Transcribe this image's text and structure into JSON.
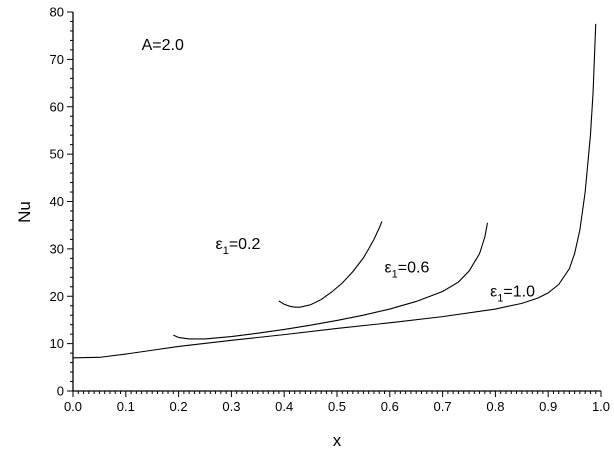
{
  "chart_data": {
    "type": "line",
    "xlabel": "x",
    "ylabel": "Nu",
    "xlim": [
      0.0,
      1.0
    ],
    "ylim": [
      0,
      80
    ],
    "xticks": [
      "0.0",
      "0.1",
      "0.2",
      "0.3",
      "0.4",
      "0.5",
      "0.6",
      "0.7",
      "0.8",
      "0.9",
      "1.0"
    ],
    "yticks": [
      "0",
      "10",
      "20",
      "30",
      "40",
      "50",
      "60",
      "70",
      "80"
    ],
    "grid": false,
    "annotations": [
      {
        "text": "A=2.0",
        "x": 0.13,
        "y": 72
      }
    ],
    "series": [
      {
        "name": "ε1=0.2",
        "label_main": "ε",
        "label_sub": "1",
        "label_rest": "=0.2",
        "label_x": 0.27,
        "label_y": 30,
        "x": [
          0.39,
          0.4,
          0.41,
          0.42,
          0.43,
          0.45,
          0.47,
          0.49,
          0.51,
          0.53,
          0.55,
          0.56,
          0.57,
          0.58,
          0.585
        ],
        "y": [
          19.0,
          18.3,
          17.9,
          17.7,
          17.7,
          18.2,
          19.3,
          20.9,
          22.8,
          25.2,
          28.1,
          30.0,
          32.0,
          34.4,
          35.8
        ]
      },
      {
        "name": "ε1=0.6",
        "label_main": "ε",
        "label_sub": "1",
        "label_rest": "=0.6",
        "label_x": 0.59,
        "label_y": 25,
        "x": [
          0.19,
          0.2,
          0.22,
          0.25,
          0.3,
          0.35,
          0.4,
          0.45,
          0.5,
          0.55,
          0.6,
          0.65,
          0.7,
          0.73,
          0.75,
          0.77,
          0.78,
          0.785
        ],
        "y": [
          11.8,
          11.3,
          11.0,
          11.0,
          11.5,
          12.2,
          13.0,
          13.9,
          14.9,
          16.0,
          17.3,
          18.9,
          21.0,
          23.0,
          25.3,
          29.0,
          32.5,
          35.5
        ]
      },
      {
        "name": "ε1=1.0",
        "label_main": "ε",
        "label_sub": "1",
        "label_rest": "=1.0",
        "label_x": 0.79,
        "label_y": 20,
        "x": [
          0.0,
          0.05,
          0.1,
          0.15,
          0.2,
          0.3,
          0.4,
          0.5,
          0.6,
          0.7,
          0.8,
          0.85,
          0.88,
          0.9,
          0.92,
          0.94,
          0.95,
          0.96,
          0.97,
          0.98,
          0.985,
          0.99
        ],
        "y": [
          7.0,
          7.1,
          7.8,
          8.6,
          9.4,
          10.7,
          11.9,
          13.2,
          14.4,
          15.7,
          17.3,
          18.5,
          19.6,
          20.7,
          22.5,
          25.8,
          29.0,
          34.0,
          42.0,
          54.0,
          63.0,
          77.5
        ]
      }
    ]
  }
}
